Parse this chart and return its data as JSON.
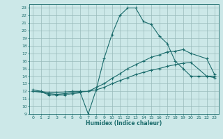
{
  "xlabel": "Humidex (Indice chaleur)",
  "xlim": [
    -0.5,
    23.5
  ],
  "ylim": [
    9,
    23.5
  ],
  "xticks": [
    0,
    1,
    2,
    3,
    4,
    5,
    6,
    7,
    8,
    9,
    10,
    11,
    12,
    13,
    14,
    15,
    16,
    17,
    18,
    19,
    20,
    21,
    22,
    23
  ],
  "yticks": [
    9,
    10,
    11,
    12,
    13,
    14,
    15,
    16,
    17,
    18,
    19,
    20,
    21,
    22,
    23
  ],
  "bg_color": "#cce8e8",
  "grid_color": "#99bbbb",
  "line_color": "#1a6b6b",
  "line1_x": [
    0,
    1,
    2,
    3,
    4,
    5,
    6,
    7,
    8,
    9,
    10,
    11,
    12,
    13,
    14,
    15,
    16,
    17,
    18,
    19,
    20,
    21,
    22,
    23
  ],
  "line1_y": [
    12,
    12,
    11.5,
    11.5,
    11.5,
    11.7,
    11.8,
    9.0,
    12.2,
    16.3,
    19.5,
    22.0,
    23.0,
    23.0,
    21.2,
    20.8,
    19.3,
    18.3,
    16.0,
    15.0,
    14.0,
    14.0,
    14.0,
    14.0
  ],
  "line2_x": [
    0,
    2,
    3,
    4,
    5,
    6,
    7,
    8,
    9,
    10,
    11,
    12,
    13,
    14,
    15,
    16,
    17,
    18,
    19,
    20,
    22,
    23
  ],
  "line2_y": [
    12.2,
    11.8,
    11.8,
    11.9,
    12.0,
    12.0,
    12.0,
    12.5,
    13.0,
    13.7,
    14.3,
    15.0,
    15.5,
    16.0,
    16.5,
    16.8,
    17.2,
    17.3,
    17.5,
    17.0,
    16.3,
    14.2
  ],
  "line3_x": [
    0,
    2,
    3,
    4,
    5,
    6,
    7,
    8,
    9,
    10,
    11,
    12,
    13,
    14,
    15,
    16,
    17,
    18,
    19,
    20,
    22,
    23
  ],
  "line3_y": [
    12.0,
    11.7,
    11.6,
    11.7,
    11.8,
    11.9,
    12.0,
    12.2,
    12.5,
    13.0,
    13.4,
    13.8,
    14.2,
    14.5,
    14.8,
    15.0,
    15.3,
    15.5,
    15.7,
    15.8,
    14.0,
    13.8
  ]
}
